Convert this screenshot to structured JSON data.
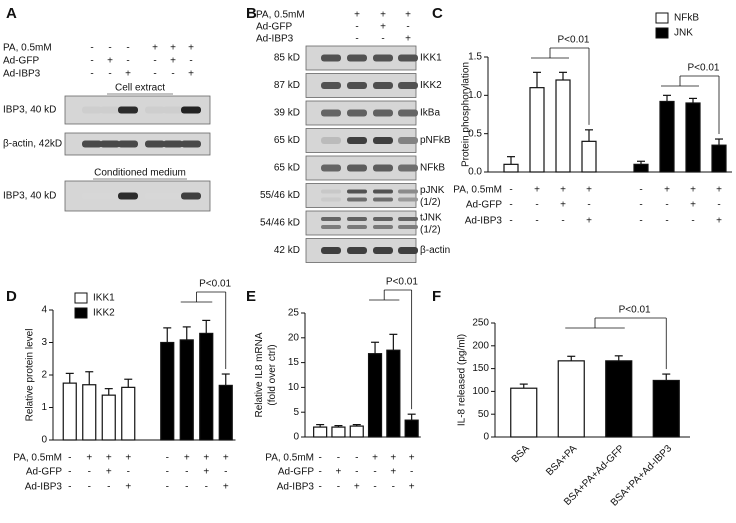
{
  "panel_labels": [
    "A",
    "B",
    "C",
    "D",
    "E",
    "F"
  ],
  "blot_a": {
    "treatments": [
      {
        "name": "PA, 0.5mM",
        "signs": [
          "-",
          "-",
          "-",
          "+",
          "+",
          "+"
        ]
      },
      {
        "name": "Ad-GFP",
        "signs": [
          "-",
          "+",
          "-",
          "-",
          "+",
          "-"
        ]
      },
      {
        "name": "Ad-IBP3",
        "signs": [
          "-",
          "-",
          "+",
          "-",
          "-",
          "+"
        ]
      }
    ],
    "sections": [
      "Cell extract",
      "Conditioned medium"
    ],
    "rows": [
      "IBP3, 40 kD",
      "β-actin, 42kD",
      "IBP3, 40 kD"
    ]
  },
  "blot_b": {
    "treatments": [
      {
        "name": "PA, 0.5mM",
        "signs": [
          "+",
          "+",
          "+"
        ]
      },
      {
        "name": "Ad-GFP",
        "signs": [
          "-",
          "+",
          "-"
        ]
      },
      {
        "name": "Ad-IBP3",
        "signs": [
          "-",
          "-",
          "+"
        ]
      }
    ],
    "rows": [
      {
        "size": "85 kD",
        "protein": "IKK1"
      },
      {
        "size": "87 kD",
        "protein": "IKK2"
      },
      {
        "size": "39 kD",
        "protein": "IkBa"
      },
      {
        "size": "65 kD",
        "protein": "pNFkB"
      },
      {
        "size": "65 kD",
        "protein": "NFkB"
      },
      {
        "size": "55/46 kD",
        "protein": "pJNK",
        "note": "(1/2)"
      },
      {
        "size": "54/46 kD",
        "protein": "tJNK",
        "note": "(1/2)"
      },
      {
        "size": "42 kD",
        "protein": "β-actin"
      }
    ]
  },
  "chart_data": [
    {
      "type": "bar",
      "ylabel": [
        "Protein phosphorylation"
      ],
      "ylim": [
        0,
        1.5
      ],
      "yticks": [
        {
          "value": 0,
          "label": "0.0"
        },
        {
          "value": 0.5,
          "label": "0.5"
        },
        {
          "value": 1,
          "label": "1.0"
        },
        {
          "value": 1.5,
          "label": "1.5"
        }
      ],
      "series": [
        {
          "name": "NFkB",
          "color": "#ffffff",
          "values": [
            0.1,
            1.1,
            1.2,
            0.4
          ],
          "errors": [
            0.1,
            0.2,
            0.1,
            0.15
          ]
        },
        {
          "name": "JNK",
          "color": "#000000",
          "values": [
            0.1,
            0.92,
            0.9,
            0.35
          ],
          "errors": [
            0.04,
            0.08,
            0.06,
            0.08
          ]
        }
      ],
      "annotations": [
        "P<0.01",
        "P<0.01"
      ],
      "treatments": [
        {
          "name": "PA, 0.5mM",
          "signs": [
            "-",
            "+",
            "+",
            "+",
            "-",
            "+",
            "+",
            "+"
          ]
        },
        {
          "name": "Ad-GFP",
          "signs": [
            "-",
            "-",
            "+",
            "-",
            "-",
            "-",
            "+",
            "-"
          ]
        },
        {
          "name": "Ad-IBP3",
          "signs": [
            "-",
            "-",
            "-",
            "+",
            "-",
            "-",
            "-",
            "+"
          ]
        }
      ]
    },
    {
      "type": "bar",
      "ylabel": [
        "Relative protein level"
      ],
      "ylim": [
        0,
        4
      ],
      "yticks": [
        0,
        1,
        2,
        3,
        4
      ],
      "series": [
        {
          "name": "IKK1",
          "color": "#ffffff",
          "values": [
            1.75,
            1.7,
            1.38,
            1.62
          ],
          "errors": [
            0.3,
            0.4,
            0.2,
            0.25
          ]
        },
        {
          "name": "IKK2",
          "color": "#000000",
          "values": [
            3.0,
            3.08,
            3.28,
            1.68
          ],
          "errors": [
            0.45,
            0.4,
            0.4,
            0.35
          ]
        }
      ],
      "annotations": [
        "P<0.01"
      ],
      "treatments": [
        {
          "name": "PA, 0.5mM",
          "signs": [
            "-",
            "+",
            "+",
            "+",
            "-",
            "+",
            "+",
            "+"
          ]
        },
        {
          "name": "Ad-GFP",
          "signs": [
            "-",
            "-",
            "+",
            "-",
            "-",
            "-",
            "+",
            "-"
          ]
        },
        {
          "name": "Ad-IBP3",
          "signs": [
            "-",
            "-",
            "-",
            "+",
            "-",
            "-",
            "-",
            "+"
          ]
        }
      ]
    },
    {
      "type": "bar",
      "ylabel": [
        "Relative IL8 mRNA",
        "(fold over ctrl)"
      ],
      "ylim": [
        0,
        25
      ],
      "yticks": [
        0,
        5,
        10,
        15,
        20,
        25
      ],
      "series": [
        {
          "colors": [
            "#ffffff",
            "#ffffff",
            "#ffffff",
            "#000000",
            "#000000",
            "#000000"
          ],
          "values": [
            2.0,
            2.0,
            2.2,
            16.8,
            17.5,
            3.4
          ],
          "errors": [
            0.5,
            0.3,
            0.3,
            2.3,
            3.2,
            1.2
          ]
        }
      ],
      "annotations": [
        "P<0.01"
      ],
      "treatments": [
        {
          "name": "PA, 0.5mM",
          "signs": [
            "-",
            "-",
            "-",
            "+",
            "+",
            "+"
          ]
        },
        {
          "name": "Ad-GFP",
          "signs": [
            "-",
            "+",
            "-",
            "-",
            "+",
            "-"
          ]
        },
        {
          "name": "Ad-IBP3",
          "signs": [
            "-",
            "-",
            "+",
            "-",
            "-",
            "+"
          ]
        }
      ]
    },
    {
      "type": "bar",
      "ylabel": [
        "IL-8 released (pg/ml)"
      ],
      "ylim": [
        0,
        250
      ],
      "yticks": [
        0,
        50,
        100,
        150,
        200,
        250
      ],
      "categories": [
        "BSA",
        "BSA+PA",
        "BSA+PA+Ad-GFP",
        "BSA+PA+Ad-IBP3"
      ],
      "series": [
        {
          "colors": [
            "#ffffff",
            "#ffffff",
            "#000000",
            "#000000"
          ],
          "values": [
            107,
            167,
            167,
            124
          ],
          "errors": [
            9,
            10,
            11,
            14
          ]
        }
      ],
      "annotations": [
        "P<0.01"
      ]
    }
  ]
}
